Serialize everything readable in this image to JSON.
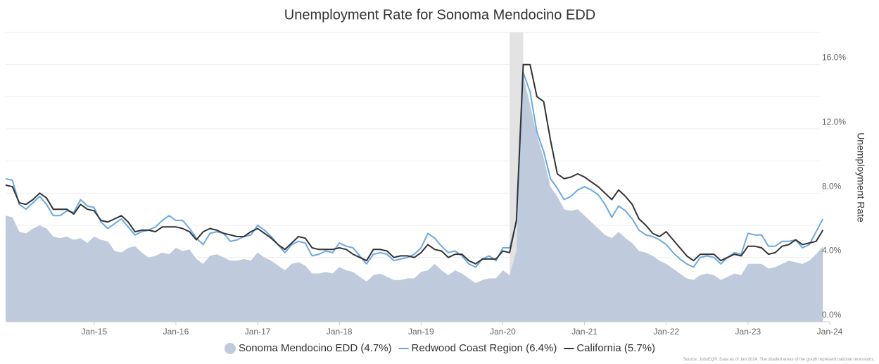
{
  "chart_data": {
    "type": "line",
    "title": "Unemployment Rate for Sonoma Mendocino EDD",
    "y_label": "Unemployment Rate",
    "source": "Source: JobsEQ®. Data as of Jan 2024. The shaded areas of the graph represent national recessions.",
    "x": [
      "2013-12",
      "2014-01",
      "2014-02",
      "2014-03",
      "2014-04",
      "2014-05",
      "2014-06",
      "2014-07",
      "2014-08",
      "2014-09",
      "2014-10",
      "2014-11",
      "2014-12",
      "2015-01",
      "2015-02",
      "2015-03",
      "2015-04",
      "2015-05",
      "2015-06",
      "2015-07",
      "2015-08",
      "2015-09",
      "2015-10",
      "2015-11",
      "2015-12",
      "2016-01",
      "2016-02",
      "2016-03",
      "2016-04",
      "2016-05",
      "2016-06",
      "2016-07",
      "2016-08",
      "2016-09",
      "2016-10",
      "2016-11",
      "2016-12",
      "2017-01",
      "2017-02",
      "2017-03",
      "2017-04",
      "2017-05",
      "2017-06",
      "2017-07",
      "2017-08",
      "2017-09",
      "2017-10",
      "2017-11",
      "2017-12",
      "2018-01",
      "2018-02",
      "2018-03",
      "2018-04",
      "2018-05",
      "2018-06",
      "2018-07",
      "2018-08",
      "2018-09",
      "2018-10",
      "2018-11",
      "2018-12",
      "2019-01",
      "2019-02",
      "2019-03",
      "2019-04",
      "2019-05",
      "2019-06",
      "2019-07",
      "2019-08",
      "2019-09",
      "2019-10",
      "2019-11",
      "2019-12",
      "2020-01",
      "2020-02",
      "2020-03",
      "2020-04",
      "2020-05",
      "2020-06",
      "2020-07",
      "2020-08",
      "2020-09",
      "2020-10",
      "2020-11",
      "2020-12",
      "2021-01",
      "2021-02",
      "2021-03",
      "2021-04",
      "2021-05",
      "2021-06",
      "2021-07",
      "2021-08",
      "2021-09",
      "2021-10",
      "2021-11",
      "2021-12",
      "2022-01",
      "2022-02",
      "2022-03",
      "2022-04",
      "2022-05",
      "2022-06",
      "2022-07",
      "2022-08",
      "2022-09",
      "2022-10",
      "2022-11",
      "2022-12",
      "2023-01",
      "2023-02",
      "2023-03",
      "2023-04",
      "2023-05",
      "2023-06",
      "2023-07",
      "2023-08",
      "2023-09",
      "2023-10",
      "2023-11",
      "2023-12"
    ],
    "xlim": [
      "2013-12",
      "2024-01"
    ],
    "xticks": [
      {
        "value": "2015-01",
        "label": "Jan-15"
      },
      {
        "value": "2016-01",
        "label": "Jan-16"
      },
      {
        "value": "2017-01",
        "label": "Jan-17"
      },
      {
        "value": "2018-01",
        "label": "Jan-18"
      },
      {
        "value": "2019-01",
        "label": "Jan-19"
      },
      {
        "value": "2020-01",
        "label": "Jan-20"
      },
      {
        "value": "2021-01",
        "label": "Jan-21"
      },
      {
        "value": "2022-01",
        "label": "Jan-22"
      },
      {
        "value": "2023-01",
        "label": "Jan-23"
      },
      {
        "value": "2024-01",
        "label": "Jan-24"
      }
    ],
    "ylim": [
      0,
      18
    ],
    "yticks": [
      {
        "value": 0,
        "label": "0.0%"
      },
      {
        "value": 4,
        "label": "4.0%"
      },
      {
        "value": 8,
        "label": "8.0%"
      },
      {
        "value": 12,
        "label": "12.0%"
      },
      {
        "value": 16,
        "label": "16.0%"
      }
    ],
    "minor_yticks": [
      2,
      6,
      10,
      14,
      18
    ],
    "grid": true,
    "recessions": [
      {
        "start": "2020-02",
        "end": "2020-04"
      }
    ],
    "series": [
      {
        "name": "Sonoma Mendocino EDD (4.7%)",
        "style": "area",
        "color": "#bfcbdc",
        "values": [
          6.6,
          6.5,
          5.6,
          5.5,
          5.8,
          6.0,
          5.8,
          5.3,
          5.2,
          5.3,
          5.1,
          5.2,
          4.9,
          5.3,
          5.1,
          5.0,
          4.4,
          4.3,
          4.6,
          4.7,
          4.3,
          4.0,
          4.1,
          4.3,
          4.2,
          4.6,
          4.4,
          4.5,
          3.9,
          3.6,
          4.1,
          4.2,
          4.0,
          3.8,
          3.8,
          3.9,
          3.8,
          4.3,
          4.0,
          3.8,
          3.5,
          3.2,
          3.6,
          3.7,
          3.5,
          3.0,
          3.0,
          3.1,
          3.0,
          3.4,
          3.2,
          3.1,
          2.8,
          2.5,
          2.9,
          3.0,
          2.8,
          2.6,
          2.6,
          2.7,
          2.7,
          3.1,
          3.2,
          3.6,
          3.2,
          2.9,
          3.2,
          3.0,
          2.7,
          2.4,
          2.6,
          2.7,
          2.7,
          3.2,
          2.9,
          4.4,
          15.3,
          13.5,
          11.6,
          10.2,
          8.4,
          7.8,
          7.0,
          6.9,
          7.0,
          6.6,
          6.2,
          5.8,
          5.4,
          5.2,
          5.6,
          5.2,
          4.9,
          4.4,
          4.3,
          4.1,
          3.8,
          3.6,
          3.3,
          3.0,
          2.7,
          2.6,
          2.9,
          3.0,
          2.9,
          2.6,
          2.8,
          3.0,
          2.9,
          3.6,
          3.6,
          3.6,
          3.3,
          3.4,
          3.6,
          3.8,
          3.7,
          3.6,
          3.8,
          4.2,
          4.7
        ]
      },
      {
        "name": "Redwood Coast Region (6.4%)",
        "style": "line",
        "color": "#6aa9e3",
        "values": [
          8.9,
          8.8,
          7.3,
          7.0,
          7.4,
          7.8,
          7.3,
          6.6,
          6.6,
          6.9,
          6.8,
          7.6,
          7.2,
          7.1,
          6.2,
          5.8,
          6.1,
          6.4,
          5.9,
          5.4,
          5.6,
          5.7,
          5.9,
          6.3,
          6.6,
          6.3,
          6.3,
          5.8,
          5.2,
          4.8,
          5.5,
          5.6,
          5.5,
          5.0,
          5.1,
          5.3,
          5.4,
          6.0,
          5.7,
          5.3,
          4.8,
          4.3,
          4.8,
          5.0,
          4.9,
          4.1,
          4.2,
          4.4,
          4.3,
          4.9,
          4.7,
          4.6,
          4.1,
          3.6,
          4.2,
          4.3,
          4.2,
          3.8,
          3.9,
          4.0,
          4.2,
          4.6,
          5.5,
          5.2,
          4.7,
          4.3,
          4.4,
          4.1,
          3.6,
          3.4,
          3.9,
          4.1,
          3.8,
          4.6,
          4.6,
          6.2,
          15.5,
          14.3,
          11.8,
          10.6,
          8.9,
          8.3,
          7.6,
          7.8,
          8.2,
          8.4,
          8.2,
          7.9,
          7.3,
          6.5,
          7.2,
          6.9,
          6.4,
          5.7,
          5.4,
          5.3,
          5.1,
          4.8,
          4.3,
          3.9,
          3.6,
          3.4,
          4.0,
          4.1,
          4.0,
          3.6,
          4.0,
          4.3,
          4.2,
          5.5,
          5.4,
          5.4,
          4.7,
          4.7,
          5.0,
          5.0,
          5.1,
          4.6,
          4.8,
          5.6,
          6.4
        ]
      },
      {
        "name": "California (5.7%)",
        "style": "line",
        "color": "#333333",
        "values": [
          8.5,
          8.4,
          7.4,
          7.3,
          7.6,
          8.0,
          7.7,
          7.0,
          7.0,
          7.0,
          6.7,
          7.3,
          7.0,
          6.9,
          6.3,
          6.2,
          6.4,
          6.6,
          6.2,
          5.6,
          5.7,
          5.7,
          5.6,
          5.9,
          5.9,
          5.9,
          5.8,
          5.6,
          5.1,
          5.6,
          5.8,
          5.7,
          5.5,
          5.4,
          5.3,
          5.3,
          5.6,
          5.8,
          5.5,
          5.2,
          4.8,
          4.5,
          4.9,
          5.3,
          5.2,
          4.6,
          4.5,
          4.5,
          4.5,
          4.6,
          4.5,
          4.2,
          4.0,
          3.8,
          4.5,
          4.5,
          4.4,
          4.0,
          4.1,
          4.1,
          4.0,
          4.3,
          4.8,
          4.5,
          4.4,
          4.0,
          4.2,
          4.2,
          3.8,
          3.6,
          3.9,
          3.9,
          3.9,
          4.4,
          4.3,
          6.3,
          16.0,
          16.0,
          14.0,
          13.7,
          11.3,
          9.2,
          8.9,
          9.0,
          9.2,
          9.0,
          8.7,
          8.4,
          8.0,
          7.6,
          8.2,
          7.8,
          7.3,
          6.4,
          6.0,
          5.5,
          5.3,
          5.6,
          5.1,
          4.6,
          4.1,
          3.8,
          4.2,
          4.2,
          4.2,
          3.8,
          4.0,
          4.2,
          4.1,
          4.7,
          4.7,
          4.6,
          4.2,
          4.3,
          4.7,
          4.8,
          5.1,
          4.8,
          4.9,
          5.0,
          5.7
        ]
      }
    ]
  }
}
